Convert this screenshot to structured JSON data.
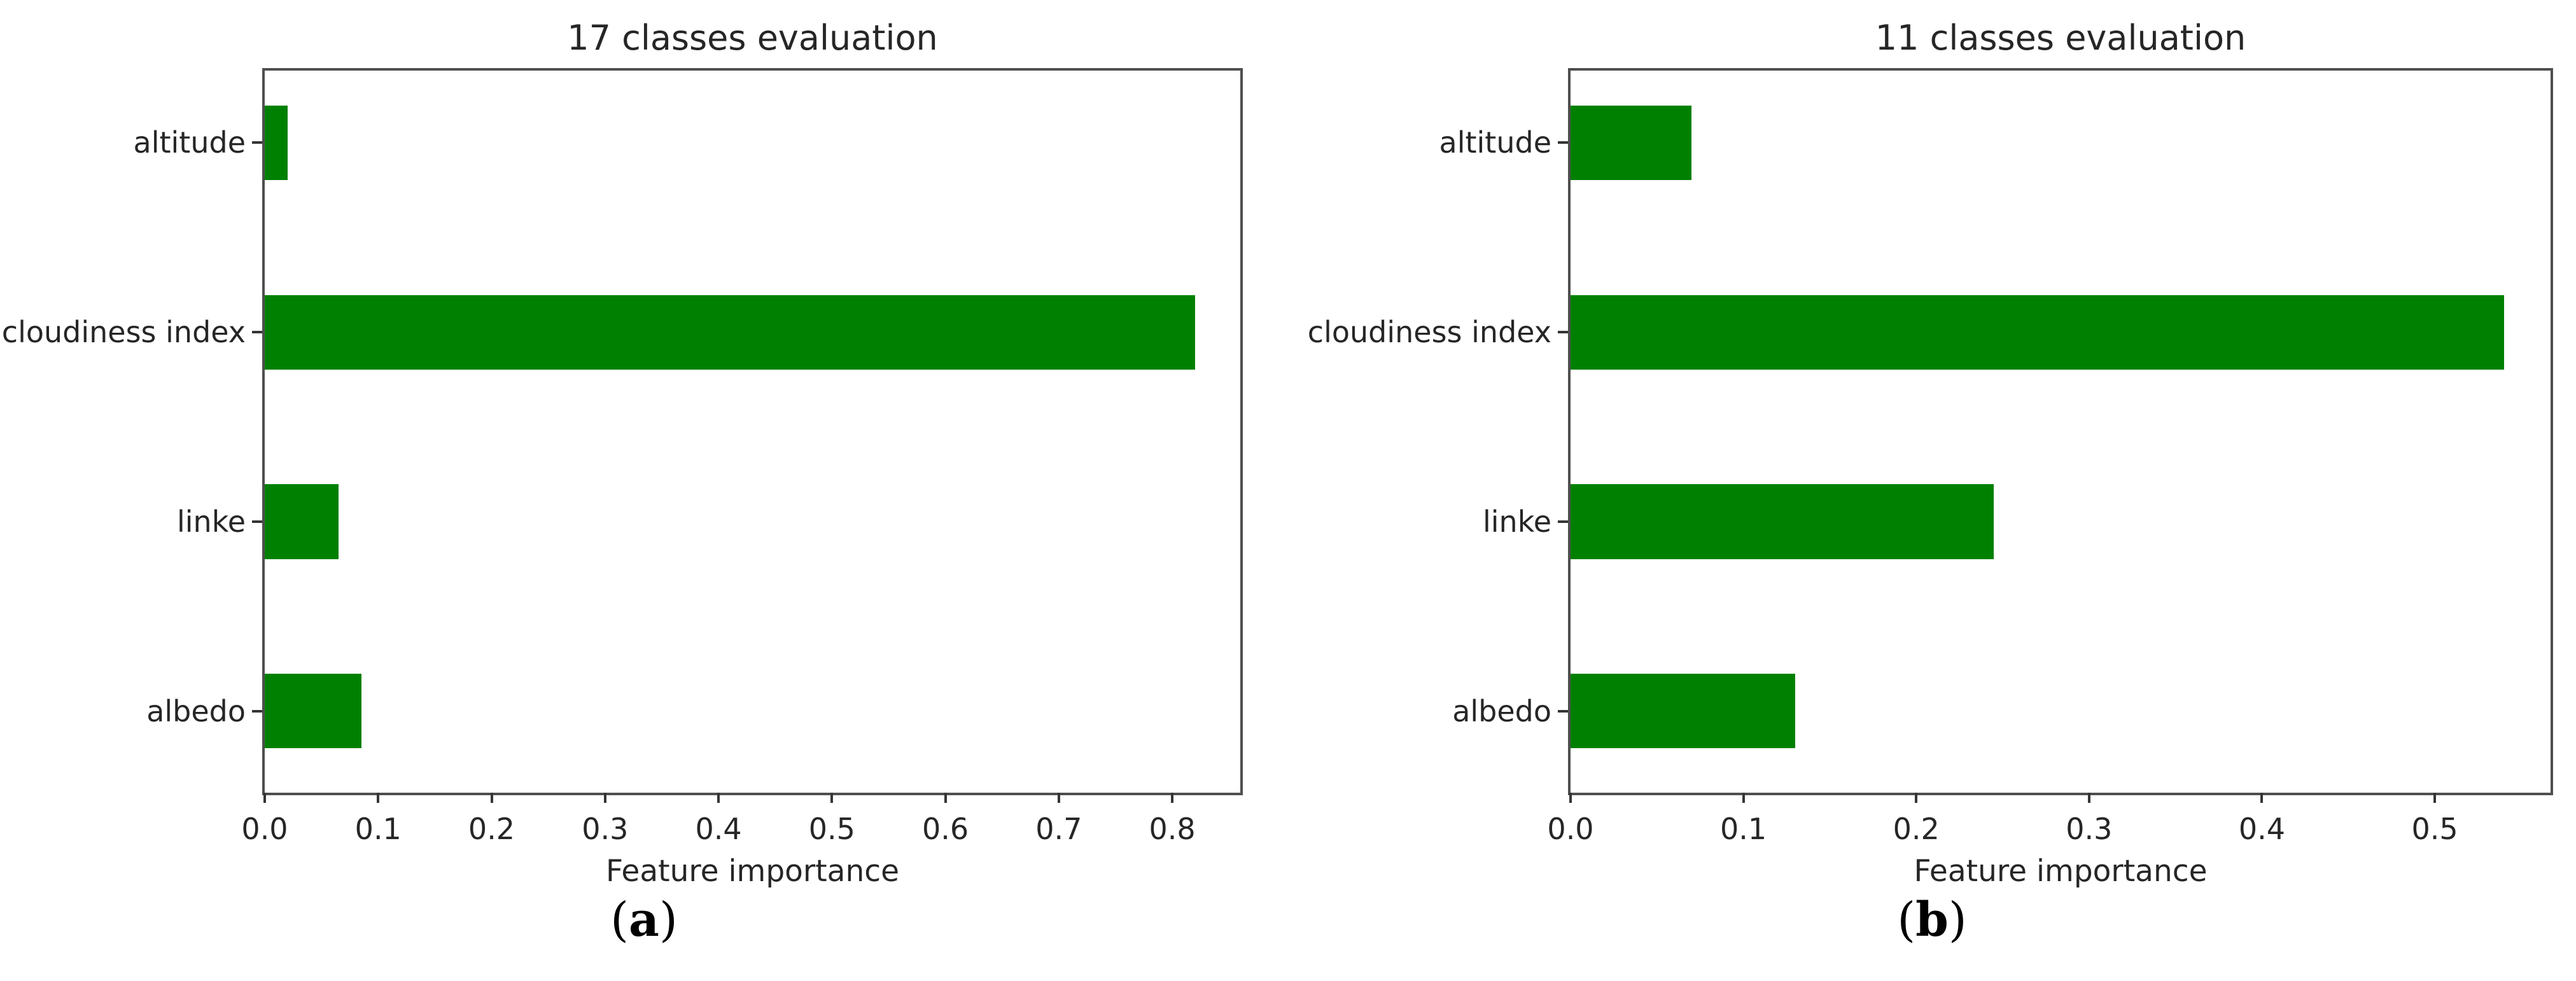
{
  "figure": {
    "background_color": "#ffffff",
    "bar_color": "#008000",
    "text_color": "#262626",
    "spine_color": "#4f4f4f"
  },
  "chart_data": [
    {
      "type": "bar",
      "orientation": "horizontal",
      "title": "17 classes evaluation",
      "categories": [
        "altitude",
        "cloudiness index",
        "linke",
        "albedo"
      ],
      "values": [
        0.02,
        0.82,
        0.065,
        0.085
      ],
      "xlabel": "Feature importance",
      "xlim": [
        0,
        0.86
      ],
      "xticks": [
        0,
        0.1,
        0.2,
        0.3,
        0.4,
        0.5,
        0.6,
        0.7,
        0.8
      ],
      "grid": false,
      "legend": "none",
      "bar_color": "#008000",
      "caption": {
        "open": "(",
        "letter": "a",
        "close": ")"
      }
    },
    {
      "type": "bar",
      "orientation": "horizontal",
      "title": "11 classes evaluation",
      "categories": [
        "altitude",
        "cloudiness index",
        "linke",
        "albedo"
      ],
      "values": [
        0.07,
        0.54,
        0.245,
        0.13
      ],
      "xlabel": "Feature importance",
      "xlim": [
        0,
        0.567
      ],
      "xticks": [
        0,
        0.1,
        0.2,
        0.3,
        0.4,
        0.5
      ],
      "grid": false,
      "legend": "none",
      "bar_color": "#008000",
      "caption": {
        "open": "(",
        "letter": "b",
        "close": ")"
      }
    }
  ]
}
